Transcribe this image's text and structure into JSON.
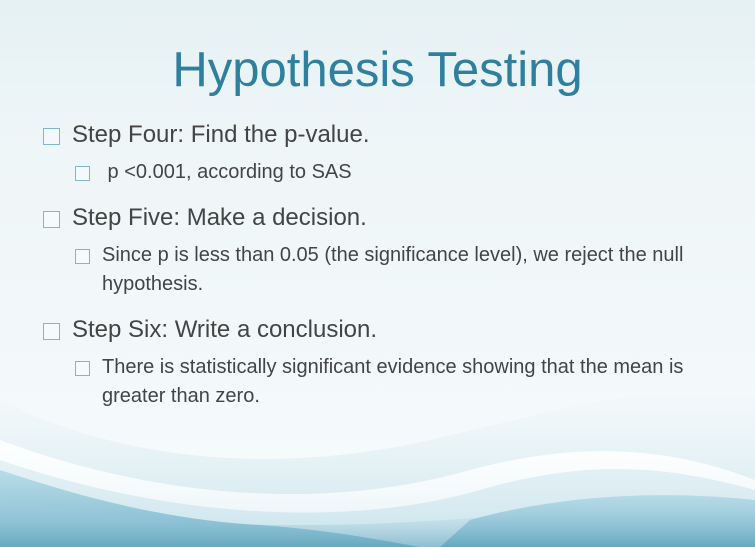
{
  "slide": {
    "title": "Hypothesis Testing",
    "items": [
      {
        "text": "Step Four: Find the p-value.",
        "sub": [
          {
            "text": " p <0.001, according to SAS"
          }
        ]
      },
      {
        "text": "Step Five: Make a decision.",
        "sub": [
          {
            "text": "Since p is less than 0.05 (the significance level), we reject the null hypothesis."
          }
        ]
      },
      {
        "text": "Step Six: Write a conclusion.",
        "sub": [
          {
            "text": "There is statistically significant evidence showing that the mean is greater than zero."
          }
        ]
      }
    ]
  },
  "colors": {
    "title": "#2f7f9f",
    "body_text": "#444444",
    "bullet_border": "#7fb8cc",
    "wave_dark": "#5aa3bd",
    "background": "#eef6f8"
  }
}
